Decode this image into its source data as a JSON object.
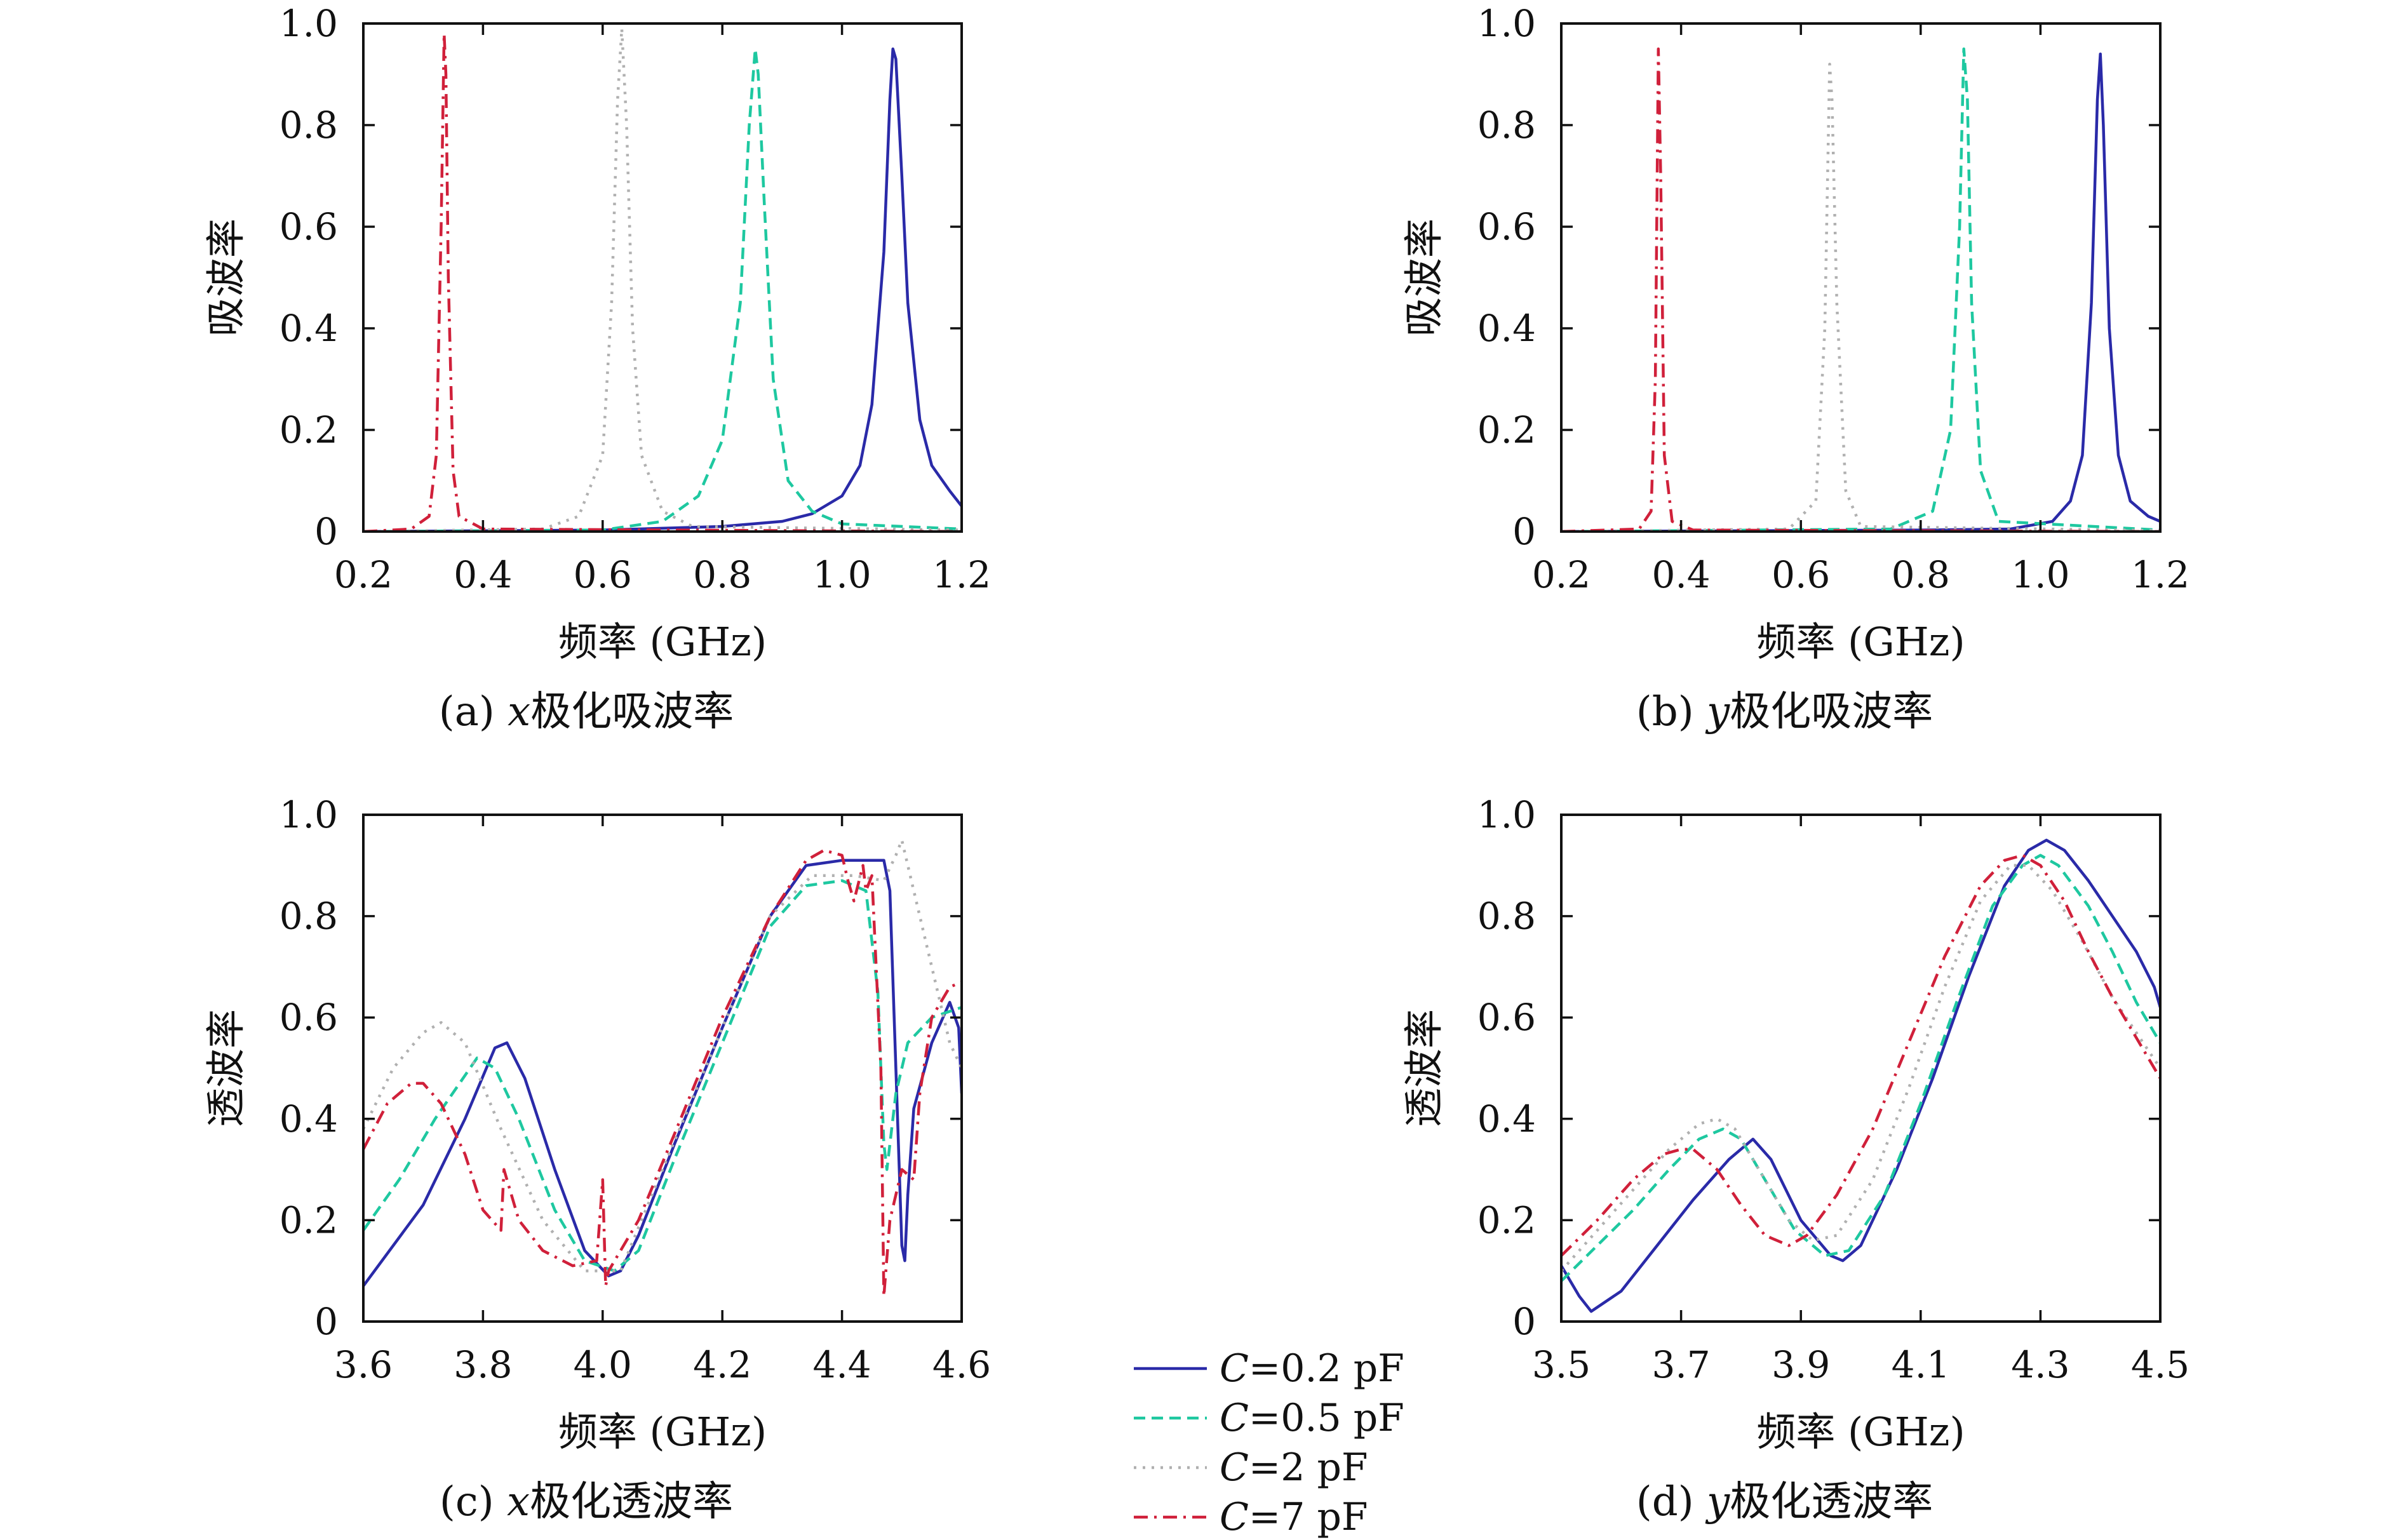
{
  "chart_data": [
    {
      "id": "a",
      "type": "line",
      "caption": "(a) x极化吸波率",
      "xlabel": "频率 (GHz)",
      "ylabel": "吸波率",
      "xlim": [
        0.2,
        1.2
      ],
      "ylim": [
        0,
        1.0
      ],
      "xticks": [
        "0.2",
        "0.4",
        "0.6",
        "0.8",
        "1.0",
        "1.2"
      ],
      "yticks": [
        "0",
        "0.2",
        "0.4",
        "0.6",
        "0.8",
        "1.0"
      ],
      "series": [
        {
          "name": "C=0.2 pF",
          "color": "#2a2aa8",
          "dash": "solid",
          "x": [
            0.2,
            0.6,
            0.8,
            0.9,
            0.95,
            1.0,
            1.03,
            1.05,
            1.07,
            1.08,
            1.085,
            1.09,
            1.1,
            1.11,
            1.13,
            1.15,
            1.18,
            1.2
          ],
          "y": [
            0,
            0.003,
            0.01,
            0.02,
            0.035,
            0.07,
            0.13,
            0.25,
            0.55,
            0.85,
            0.95,
            0.93,
            0.7,
            0.45,
            0.22,
            0.13,
            0.08,
            0.05
          ]
        },
        {
          "name": "C=0.5 pF",
          "color": "#1ec8a0",
          "dash": "dash",
          "x": [
            0.2,
            0.6,
            0.7,
            0.76,
            0.8,
            0.83,
            0.845,
            0.855,
            0.86,
            0.87,
            0.885,
            0.91,
            0.95,
            1.0,
            1.2
          ],
          "y": [
            0,
            0.003,
            0.02,
            0.07,
            0.18,
            0.45,
            0.8,
            0.95,
            0.9,
            0.65,
            0.3,
            0.1,
            0.04,
            0.015,
            0.005
          ]
        },
        {
          "name": "C=2 pF",
          "color": "#b0b0b0",
          "dash": "dot",
          "x": [
            0.2,
            0.5,
            0.56,
            0.6,
            0.615,
            0.625,
            0.632,
            0.64,
            0.65,
            0.665,
            0.7,
            0.75,
            1.2
          ],
          "y": [
            0,
            0.005,
            0.03,
            0.15,
            0.45,
            0.85,
            0.99,
            0.8,
            0.4,
            0.15,
            0.04,
            0.01,
            0.003
          ]
        },
        {
          "name": "C=7 pF",
          "color": "#d0203a",
          "dash": "dashdot",
          "x": [
            0.2,
            0.28,
            0.31,
            0.322,
            0.33,
            0.335,
            0.338,
            0.342,
            0.35,
            0.36,
            0.4,
            1.2
          ],
          "y": [
            0,
            0.005,
            0.03,
            0.15,
            0.6,
            0.98,
            0.9,
            0.5,
            0.12,
            0.03,
            0.005,
            0
          ]
        }
      ]
    },
    {
      "id": "b",
      "type": "line",
      "caption": "(b) y极化吸波率",
      "xlabel": "频率 (GHz)",
      "ylabel": "吸波率",
      "xlim": [
        0.2,
        1.2
      ],
      "ylim": [
        0,
        1.0
      ],
      "xticks": [
        "0.2",
        "0.4",
        "0.6",
        "0.8",
        "1.0",
        "1.2"
      ],
      "yticks": [
        "0",
        "0.2",
        "0.4",
        "0.6",
        "0.8",
        "1.0"
      ],
      "series": [
        {
          "name": "C=0.2 pF",
          "color": "#2a2aa8",
          "dash": "solid",
          "x": [
            0.2,
            0.8,
            0.95,
            1.02,
            1.05,
            1.07,
            1.085,
            1.095,
            1.1,
            1.105,
            1.115,
            1.13,
            1.15,
            1.18,
            1.2
          ],
          "y": [
            0,
            0.003,
            0.005,
            0.02,
            0.06,
            0.15,
            0.45,
            0.85,
            0.94,
            0.8,
            0.4,
            0.15,
            0.06,
            0.03,
            0.02
          ]
        },
        {
          "name": "C=0.5 pF",
          "color": "#1ec8a0",
          "dash": "dash",
          "x": [
            0.2,
            0.75,
            0.82,
            0.85,
            0.865,
            0.872,
            0.878,
            0.885,
            0.9,
            0.93,
            1.2
          ],
          "y": [
            0,
            0.005,
            0.04,
            0.2,
            0.6,
            0.95,
            0.85,
            0.45,
            0.12,
            0.02,
            0.003
          ]
        },
        {
          "name": "C=2 pF",
          "color": "#b0b0b0",
          "dash": "dot",
          "x": [
            0.2,
            0.58,
            0.625,
            0.64,
            0.648,
            0.652,
            0.66,
            0.675,
            0.7,
            1.2
          ],
          "y": [
            0,
            0.005,
            0.06,
            0.4,
            0.92,
            0.85,
            0.45,
            0.08,
            0.01,
            0.002
          ]
        },
        {
          "name": "C=7 pF",
          "color": "#d0203a",
          "dash": "dashdot",
          "x": [
            0.2,
            0.33,
            0.35,
            0.357,
            0.362,
            0.366,
            0.372,
            0.385,
            0.42,
            1.2
          ],
          "y": [
            0,
            0.005,
            0.04,
            0.3,
            0.95,
            0.7,
            0.15,
            0.02,
            0.003,
            0
          ]
        }
      ]
    },
    {
      "id": "c",
      "type": "line",
      "caption": "(c) x极化透波率",
      "xlabel": "频率 (GHz)",
      "ylabel": "透波率",
      "xlim": [
        3.6,
        4.6
      ],
      "ylim": [
        0,
        1.0
      ],
      "xticks": [
        "3.6",
        "3.8",
        "4.0",
        "4.2",
        "4.4",
        "4.6"
      ],
      "yticks": [
        "0",
        "0.2",
        "0.4",
        "0.6",
        "0.8",
        "1.0"
      ],
      "series": [
        {
          "name": "C=0.2 pF",
          "color": "#2a2aa8",
          "dash": "solid",
          "x": [
            3.6,
            3.7,
            3.77,
            3.82,
            3.84,
            3.87,
            3.92,
            3.97,
            4.01,
            4.03,
            4.06,
            4.12,
            4.2,
            4.28,
            4.34,
            4.4,
            4.45,
            4.47,
            4.48,
            4.49,
            4.5,
            4.505,
            4.51,
            4.52,
            4.55,
            4.58,
            4.595,
            4.6
          ],
          "y": [
            0.07,
            0.23,
            0.4,
            0.54,
            0.55,
            0.48,
            0.3,
            0.14,
            0.09,
            0.1,
            0.17,
            0.35,
            0.58,
            0.8,
            0.9,
            0.91,
            0.91,
            0.91,
            0.85,
            0.5,
            0.15,
            0.12,
            0.25,
            0.42,
            0.55,
            0.63,
            0.58,
            0.45
          ]
        },
        {
          "name": "C=0.5 pF",
          "color": "#1ec8a0",
          "dash": "dash",
          "x": [
            3.6,
            3.66,
            3.72,
            3.79,
            3.82,
            3.86,
            3.92,
            3.97,
            4.02,
            4.06,
            4.12,
            4.2,
            4.28,
            4.34,
            4.4,
            4.44,
            4.46,
            4.47,
            4.475,
            4.49,
            4.51,
            4.55,
            4.6
          ],
          "y": [
            0.18,
            0.28,
            0.4,
            0.52,
            0.5,
            0.4,
            0.22,
            0.12,
            0.1,
            0.14,
            0.32,
            0.55,
            0.78,
            0.86,
            0.87,
            0.85,
            0.65,
            0.35,
            0.3,
            0.45,
            0.55,
            0.6,
            0.62
          ]
        },
        {
          "name": "C=2 pF",
          "color": "#b0b0b0",
          "dash": "dot",
          "x": [
            3.6,
            3.65,
            3.7,
            3.73,
            3.77,
            3.83,
            3.9,
            3.97,
            4.03,
            4.1,
            4.2,
            4.28,
            4.35,
            4.42,
            4.47,
            4.49,
            4.5,
            4.52,
            4.55,
            4.58,
            4.6
          ],
          "y": [
            0.38,
            0.5,
            0.57,
            0.59,
            0.55,
            0.38,
            0.2,
            0.1,
            0.1,
            0.3,
            0.58,
            0.8,
            0.88,
            0.88,
            0.87,
            0.92,
            0.95,
            0.85,
            0.7,
            0.55,
            0.5
          ]
        },
        {
          "name": "C=7 pF",
          "color": "#d0203a",
          "dash": "dashdot",
          "x": [
            3.6,
            3.64,
            3.68,
            3.7,
            3.73,
            3.77,
            3.8,
            3.83,
            3.835,
            3.84,
            3.86,
            3.9,
            3.95,
            3.99,
            4.0,
            4.005,
            4.01,
            4.02,
            4.06,
            4.12,
            4.2,
            4.28,
            4.34,
            4.37,
            4.4,
            4.41,
            4.42,
            4.435,
            4.44,
            4.45,
            4.465,
            4.47,
            4.48,
            4.5,
            4.52,
            4.53,
            4.55,
            4.58,
            4.6
          ],
          "y": [
            0.34,
            0.43,
            0.47,
            0.47,
            0.43,
            0.33,
            0.22,
            0.18,
            0.3,
            0.28,
            0.2,
            0.14,
            0.11,
            0.12,
            0.28,
            0.07,
            0.1,
            0.12,
            0.2,
            0.37,
            0.6,
            0.8,
            0.91,
            0.93,
            0.92,
            0.87,
            0.83,
            0.9,
            0.85,
            0.88,
            0.5,
            0.05,
            0.2,
            0.3,
            0.28,
            0.45,
            0.6,
            0.66,
            0.67
          ]
        }
      ]
    },
    {
      "id": "d",
      "type": "line",
      "caption": "(d) y极化透波率",
      "xlabel": "频率 (GHz)",
      "ylabel": "透波率",
      "xlim": [
        3.5,
        4.5
      ],
      "ylim": [
        0,
        1.0
      ],
      "xticks": [
        "3.5",
        "3.7",
        "3.9",
        "4.1",
        "4.3",
        "4.5"
      ],
      "yticks": [
        "0",
        "0.2",
        "0.4",
        "0.6",
        "0.8",
        "1.0"
      ],
      "series": [
        {
          "name": "C=0.2 pF",
          "color": "#2a2aa8",
          "dash": "solid",
          "x": [
            3.5,
            3.53,
            3.55,
            3.6,
            3.66,
            3.72,
            3.78,
            3.82,
            3.85,
            3.9,
            3.95,
            3.97,
            4.0,
            4.06,
            4.12,
            4.18,
            4.24,
            4.28,
            4.31,
            4.34,
            4.38,
            4.42,
            4.46,
            4.49,
            4.5
          ],
          "y": [
            0.11,
            0.05,
            0.02,
            0.06,
            0.15,
            0.24,
            0.32,
            0.36,
            0.32,
            0.2,
            0.13,
            0.12,
            0.15,
            0.3,
            0.48,
            0.68,
            0.86,
            0.93,
            0.95,
            0.93,
            0.87,
            0.8,
            0.73,
            0.66,
            0.62
          ]
        },
        {
          "name": "C=0.5 pF",
          "color": "#1ec8a0",
          "dash": "dash",
          "x": [
            3.5,
            3.56,
            3.62,
            3.68,
            3.73,
            3.77,
            3.8,
            3.84,
            3.89,
            3.94,
            3.98,
            4.04,
            4.1,
            4.16,
            4.22,
            4.27,
            4.3,
            4.33,
            4.38,
            4.42,
            4.46,
            4.5
          ],
          "y": [
            0.08,
            0.15,
            0.22,
            0.3,
            0.36,
            0.38,
            0.36,
            0.28,
            0.18,
            0.13,
            0.14,
            0.25,
            0.43,
            0.63,
            0.82,
            0.9,
            0.92,
            0.9,
            0.82,
            0.73,
            0.63,
            0.55
          ]
        },
        {
          "name": "C=2 pF",
          "color": "#b0b0b0",
          "dash": "dot",
          "x": [
            3.5,
            3.56,
            3.62,
            3.68,
            3.73,
            3.76,
            3.79,
            3.84,
            3.88,
            3.92,
            3.96,
            4.02,
            4.08,
            4.14,
            4.2,
            4.25,
            4.28,
            4.32,
            4.37,
            4.42,
            4.46,
            4.5
          ],
          "y": [
            0.1,
            0.18,
            0.26,
            0.34,
            0.39,
            0.4,
            0.38,
            0.28,
            0.2,
            0.16,
            0.17,
            0.28,
            0.46,
            0.66,
            0.83,
            0.9,
            0.9,
            0.85,
            0.75,
            0.64,
            0.57,
            0.5
          ]
        },
        {
          "name": "C=7 pF",
          "color": "#d0203a",
          "dash": "dashdot",
          "x": [
            3.5,
            3.56,
            3.62,
            3.67,
            3.7,
            3.72,
            3.76,
            3.8,
            3.84,
            3.88,
            3.91,
            3.96,
            4.02,
            4.08,
            4.14,
            4.2,
            4.24,
            4.27,
            4.3,
            4.34,
            4.38,
            4.42,
            4.46,
            4.5
          ],
          "y": [
            0.13,
            0.2,
            0.28,
            0.33,
            0.34,
            0.34,
            0.3,
            0.23,
            0.17,
            0.15,
            0.17,
            0.25,
            0.38,
            0.55,
            0.72,
            0.86,
            0.91,
            0.92,
            0.9,
            0.83,
            0.73,
            0.64,
            0.56,
            0.48
          ]
        }
      ]
    }
  ],
  "legend": {
    "placement": "bottom-center",
    "entries": [
      {
        "italic": "C",
        "rest": "=0.2 pF",
        "color": "#2a2aa8",
        "dash": "solid"
      },
      {
        "italic": "C",
        "rest": "=0.5 pF",
        "color": "#1ec8a0",
        "dash": "dash"
      },
      {
        "italic": "C",
        "rest": "=2 pF",
        "color": "#b0b0b0",
        "dash": "dot"
      },
      {
        "italic": "C",
        "rest": "=7 pF",
        "color": "#d0203a",
        "dash": "dashdot"
      }
    ]
  }
}
